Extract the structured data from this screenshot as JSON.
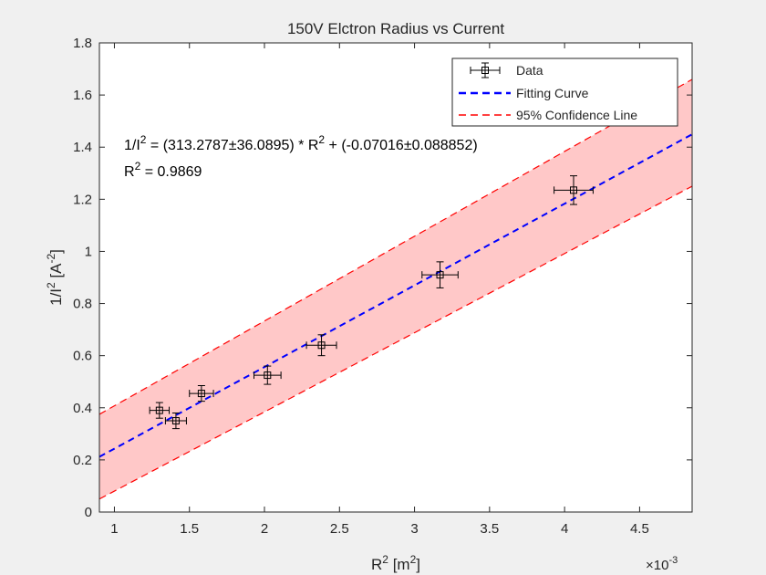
{
  "chart_data": {
    "type": "scatter",
    "title": "150V Elctron Radius vs Current",
    "xlabel": "R",
    "xlabel_sup": "2",
    "xlabel_unit_open": " [m",
    "xlabel_unit_sup": "2",
    "xlabel_unit_close": "]",
    "ylabel": "1/I",
    "ylabel_sup": "2",
    "ylabel_unit_open": " [A",
    "ylabel_unit_sup": "-2",
    "ylabel_unit_close": "]",
    "x_multiplier_label": "×10",
    "x_multiplier_exp": "-3",
    "xlim": [
      0.9,
      4.85
    ],
    "ylim": [
      0,
      1.8
    ],
    "x_ticks": [
      1,
      1.5,
      2,
      2.5,
      3,
      3.5,
      4,
      4.5
    ],
    "x_tick_labels": [
      "1",
      "1.5",
      "2",
      "2.5",
      "3",
      "3.5",
      "4",
      "4.5"
    ],
    "y_ticks": [
      0,
      0.2,
      0.4,
      0.6,
      0.8,
      1,
      1.2,
      1.4,
      1.6,
      1.8
    ],
    "y_tick_labels": [
      "0",
      "0.2",
      "0.4",
      "0.6",
      "0.8",
      "1",
      "1.2",
      "1.4",
      "1.6",
      "1.8"
    ],
    "series": [
      {
        "name": "Data",
        "kind": "errorbar",
        "color": "#000000",
        "points": [
          {
            "x": 1.3,
            "y": 0.39,
            "xerr": 0.065,
            "yerr": 0.03
          },
          {
            "x": 1.41,
            "y": 0.35,
            "xerr": 0.07,
            "yerr": 0.03
          },
          {
            "x": 1.58,
            "y": 0.455,
            "xerr": 0.08,
            "yerr": 0.03
          },
          {
            "x": 2.02,
            "y": 0.525,
            "xerr": 0.09,
            "yerr": 0.035
          },
          {
            "x": 2.38,
            "y": 0.64,
            "xerr": 0.1,
            "yerr": 0.04
          },
          {
            "x": 3.17,
            "y": 0.91,
            "xerr": 0.12,
            "yerr": 0.05
          },
          {
            "x": 4.06,
            "y": 1.235,
            "xerr": 0.13,
            "yerr": 0.055
          }
        ]
      },
      {
        "name": "Fitting Curve",
        "kind": "line",
        "color": "#0000ff",
        "slope": 313.2787,
        "intercept": -0.07016,
        "x_scale": 0.001
      },
      {
        "name": "95% Confidence Line",
        "kind": "band",
        "color": "#ff0000",
        "fill": "#ffc8c8",
        "upper": [
          [
            0.9,
            0.375
          ],
          [
            4.85,
            1.66
          ]
        ],
        "lower": [
          [
            0.9,
            0.05
          ],
          [
            4.85,
            1.25
          ]
        ]
      }
    ],
    "annotation": {
      "line1_a": "1/I",
      "line1_sup": "2",
      "line1_b": " = (313.2787±36.0895) * R",
      "line1_sup2": "2",
      "line1_c": " + (-0.07016±0.088852)",
      "line2_a": "R",
      "line2_sup": "2",
      "line2_b": " = 0.9869"
    },
    "legend_position": "top-right",
    "grid": false
  }
}
